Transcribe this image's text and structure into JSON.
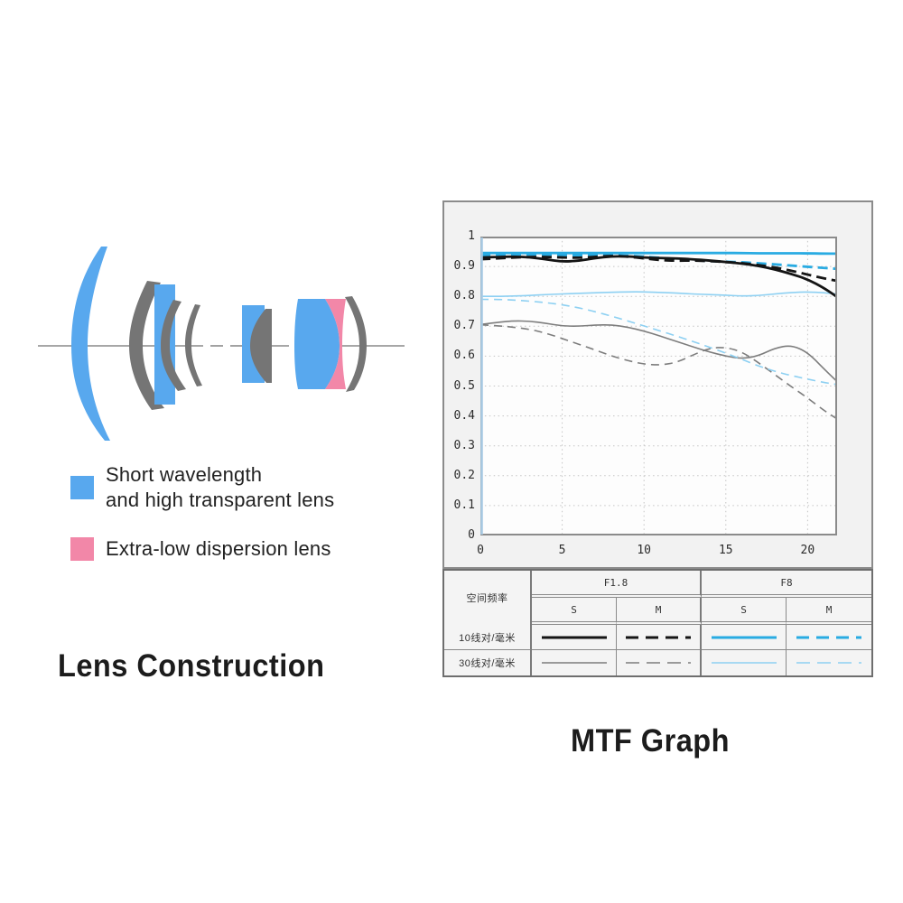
{
  "page": {
    "lens_title": "Lens Construction",
    "mtf_title": "MTF Graph"
  },
  "lens_legend": {
    "items": [
      {
        "swatch_color": "#58a8ee",
        "lines": [
          "Short wavelength",
          "and high transparent lens"
        ]
      },
      {
        "swatch_color": "#f287a8",
        "lines": [
          "Extra-low dispersion lens"
        ]
      }
    ]
  },
  "lens_colors": {
    "blue": "#58a8ee",
    "pink": "#f287a8",
    "gray": "#757575",
    "axis": "#8a8a8a"
  },
  "chart_data": {
    "type": "line",
    "title": "MTF Graph",
    "xlabel": "",
    "ylabel": "",
    "xlim": [
      0,
      21.8
    ],
    "ylim": [
      0,
      1
    ],
    "grid": "dotted",
    "x_ticks": [
      0,
      5,
      10,
      15,
      20
    ],
    "x_tick_labels": [
      "0",
      "5",
      "10",
      "15",
      "20"
    ],
    "y_ticks": [
      0,
      0.1,
      0.2,
      0.3,
      0.4,
      0.5,
      0.6,
      0.7,
      0.8,
      0.9,
      1
    ],
    "y_tick_labels": [
      "0",
      "0.1",
      "0.2",
      "0.3",
      "0.4",
      "0.5",
      "0.6",
      "0.7",
      "0.8",
      "0.9",
      "1"
    ],
    "x": [
      0,
      1,
      2,
      3,
      4,
      5,
      6,
      7,
      8,
      9,
      10,
      11,
      12,
      13,
      14,
      15,
      16,
      17,
      18,
      19,
      20,
      21,
      21.8
    ],
    "series": [
      {
        "name": "F1.8 30线对/毫米 M",
        "color": "#7d7d7d",
        "style": "dashed",
        "width": 1.6,
        "dash": "9 6",
        "values": [
          0.705,
          0.702,
          0.697,
          0.69,
          0.677,
          0.659,
          0.64,
          0.621,
          0.601,
          0.585,
          0.573,
          0.57,
          0.579,
          0.604,
          0.627,
          0.63,
          0.614,
          0.578,
          0.538,
          0.498,
          0.46,
          0.418,
          0.39
        ]
      },
      {
        "name": "F1.8 30线对/毫米 S",
        "color": "#7d7d7d",
        "style": "solid",
        "width": 1.6,
        "dash": "",
        "values": [
          0.706,
          0.713,
          0.718,
          0.717,
          0.71,
          0.701,
          0.7,
          0.704,
          0.705,
          0.697,
          0.684,
          0.667,
          0.649,
          0.631,
          0.614,
          0.6,
          0.591,
          0.601,
          0.627,
          0.637,
          0.613,
          0.557,
          0.515
        ]
      },
      {
        "name": "F8 30线对/毫米 M",
        "color": "#8dd0f2",
        "style": "dashed",
        "width": 1.6,
        "dash": "9 6",
        "values": [
          0.79,
          0.79,
          0.788,
          0.784,
          0.779,
          0.772,
          0.762,
          0.749,
          0.734,
          0.718,
          0.701,
          0.684,
          0.667,
          0.649,
          0.63,
          0.61,
          0.589,
          0.567,
          0.549,
          0.535,
          0.523,
          0.512,
          0.505
        ]
      },
      {
        "name": "F8 30线对/毫米 S",
        "color": "#8dd0f2",
        "style": "solid",
        "width": 1.6,
        "dash": "",
        "values": [
          0.8,
          0.8,
          0.801,
          0.803,
          0.806,
          0.808,
          0.81,
          0.812,
          0.814,
          0.815,
          0.815,
          0.813,
          0.811,
          0.808,
          0.806,
          0.804,
          0.801,
          0.803,
          0.808,
          0.813,
          0.815,
          0.812,
          0.808
        ]
      },
      {
        "name": "F8 10线对/毫米 M",
        "color": "#29abe2",
        "style": "dashed",
        "width": 2.8,
        "dash": "11 6",
        "values": [
          0.937,
          0.939,
          0.94,
          0.94,
          0.939,
          0.938,
          0.937,
          0.938,
          0.938,
          0.936,
          0.933,
          0.929,
          0.925,
          0.921,
          0.918,
          0.916,
          0.914,
          0.911,
          0.907,
          0.903,
          0.899,
          0.895,
          0.892
        ]
      },
      {
        "name": "F1.8 10线对/毫米 M",
        "color": "#141414",
        "style": "dashed",
        "width": 2.8,
        "dash": "11 6",
        "values": [
          0.924,
          0.927,
          0.93,
          0.932,
          0.932,
          0.93,
          0.929,
          0.932,
          0.936,
          0.933,
          0.927,
          0.921,
          0.919,
          0.92,
          0.918,
          0.915,
          0.911,
          0.905,
          0.897,
          0.886,
          0.873,
          0.86,
          0.852
        ]
      },
      {
        "name": "F1.8 10线对/毫米 S",
        "color": "#141414",
        "style": "solid",
        "width": 2.8,
        "dash": "",
        "values": [
          0.93,
          0.932,
          0.933,
          0.931,
          0.924,
          0.916,
          0.919,
          0.928,
          0.934,
          0.934,
          0.93,
          0.928,
          0.927,
          0.924,
          0.92,
          0.915,
          0.91,
          0.902,
          0.89,
          0.875,
          0.857,
          0.828,
          0.798
        ]
      },
      {
        "name": "F8 10线对/毫米 S",
        "color": "#29abe2",
        "style": "solid",
        "width": 2.8,
        "dash": "",
        "values": [
          0.945,
          0.945,
          0.945,
          0.945,
          0.945,
          0.945,
          0.945,
          0.945,
          0.945,
          0.945,
          0.945,
          0.945,
          0.945,
          0.945,
          0.945,
          0.945,
          0.945,
          0.944,
          0.944,
          0.944,
          0.944,
          0.943,
          0.943
        ]
      }
    ]
  },
  "mtf_table": {
    "corner_label": "空间频率",
    "aperture_headers": [
      "F1.8",
      "F8"
    ],
    "sm_headers": [
      "S",
      "M",
      "S",
      "M"
    ],
    "rows": [
      {
        "label": "10线对/毫米",
        "samples": [
          {
            "color": "#141414",
            "style": "solid",
            "width": 3
          },
          {
            "color": "#141414",
            "style": "dashed",
            "width": 3
          },
          {
            "color": "#29abe2",
            "style": "solid",
            "width": 3
          },
          {
            "color": "#29abe2",
            "style": "dashed",
            "width": 3
          }
        ]
      },
      {
        "label": "30线对/毫米",
        "samples": [
          {
            "color": "#7d7d7d",
            "style": "solid",
            "width": 1.6
          },
          {
            "color": "#7d7d7d",
            "style": "dashed",
            "width": 1.6
          },
          {
            "color": "#8dd0f2",
            "style": "solid",
            "width": 1.6
          },
          {
            "color": "#8dd0f2",
            "style": "dashed",
            "width": 1.6
          }
        ]
      }
    ]
  }
}
